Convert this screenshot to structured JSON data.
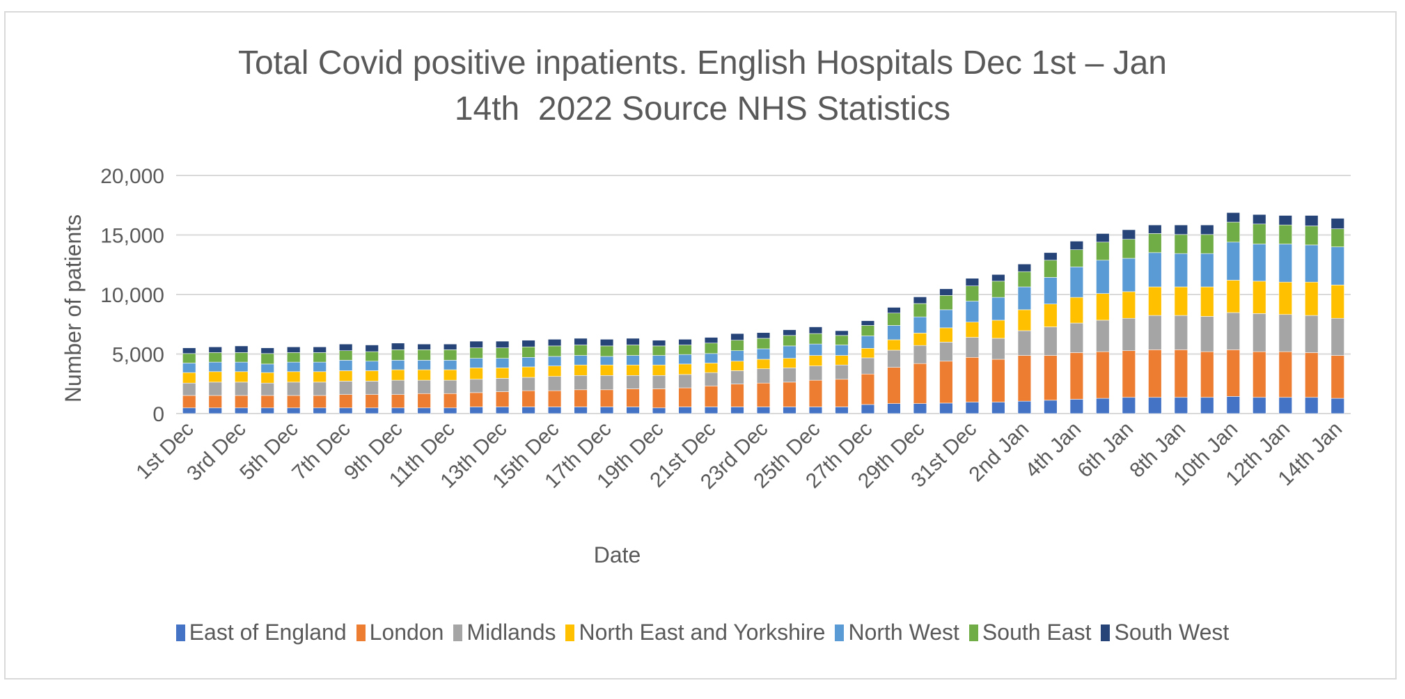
{
  "chart_data": {
    "type": "bar",
    "stacked": true,
    "title_lines": [
      "Total Covid positive inpatients. English Hospitals Dec 1st – Jan",
      "14th  2022 Source NHS Statistics"
    ],
    "xlabel": "Date",
    "ylabel": "Number of patients",
    "ylim": [
      0,
      20000
    ],
    "yticks": [
      0,
      5000,
      10000,
      15000,
      20000
    ],
    "ytick_labels": [
      "0",
      "5,000",
      "10,000",
      "15,000",
      "20,000"
    ],
    "grid": true,
    "legend_position": "bottom",
    "categories": [
      "1st Dec",
      "2nd Dec",
      "3rd Dec",
      "4th Dec",
      "5th Dec",
      "6th Dec",
      "7th Dec",
      "8th Dec",
      "9th Dec",
      "10th Dec",
      "11th Dec",
      "12th Dec",
      "13th Dec",
      "14th Dec",
      "15th Dec",
      "16th Dec",
      "17th Dec",
      "18th Dec",
      "19th Dec",
      "20th Dec",
      "21st Dec",
      "22nd Dec",
      "23rd Dec",
      "24th Dec",
      "25th Dec",
      "26th Dec",
      "27th Dec",
      "28th Dec",
      "29th Dec",
      "30th Dec",
      "31st Dec",
      "1st Jan",
      "2nd Jan",
      "3rd Jan",
      "4th Jan",
      "5th Jan",
      "6th Jan",
      "7th Jan",
      "8th Jan",
      "9th Jan",
      "10th Jan",
      "11th Jan",
      "12th Jan",
      "13th Jan",
      "14th Jan"
    ],
    "tick_label_every": 2,
    "series": [
      {
        "name": "East of England",
        "color": "#4472C4",
        "values": [
          480,
          480,
          480,
          480,
          480,
          480,
          480,
          480,
          480,
          480,
          480,
          560,
          560,
          560,
          560,
          560,
          560,
          560,
          480,
          560,
          560,
          560,
          560,
          560,
          560,
          560,
          760,
          840,
          840,
          880,
          960,
          960,
          1040,
          1120,
          1200,
          1280,
          1360,
          1360,
          1360,
          1360,
          1440,
          1360,
          1360,
          1360,
          1280
        ]
      },
      {
        "name": "London",
        "color": "#ED7D31",
        "values": [
          1040,
          1040,
          1040,
          1040,
          1040,
          1040,
          1120,
          1120,
          1120,
          1200,
          1200,
          1200,
          1280,
          1360,
          1360,
          1440,
          1440,
          1520,
          1600,
          1600,
          1760,
          1920,
          2000,
          2080,
          2240,
          2320,
          2560,
          3040,
          3360,
          3520,
          3760,
          3600,
          3840,
          3760,
          3920,
          3920,
          3920,
          4000,
          4000,
          3840,
          3920,
          3840,
          3840,
          3760,
          3600
        ]
      },
      {
        "name": "Midlands",
        "color": "#A5A5A5",
        "values": [
          1040,
          1120,
          1120,
          1040,
          1120,
          1120,
          1120,
          1120,
          1200,
          1120,
          1120,
          1120,
          1120,
          1120,
          1200,
          1200,
          1200,
          1120,
          1120,
          1120,
          1120,
          1120,
          1200,
          1200,
          1200,
          1200,
          1360,
          1440,
          1520,
          1600,
          1680,
          1760,
          2080,
          2400,
          2480,
          2640,
          2720,
          2880,
          2880,
          2960,
          3120,
          3200,
          3120,
          3120,
          3120
        ]
      },
      {
        "name": "North East and Yorkshire",
        "color": "#FFC000",
        "values": [
          880,
          880,
          880,
          880,
          880,
          880,
          880,
          880,
          880,
          880,
          880,
          960,
          880,
          880,
          880,
          880,
          880,
          880,
          880,
          880,
          800,
          800,
          800,
          800,
          880,
          800,
          800,
          880,
          1040,
          1200,
          1280,
          1520,
          1760,
          1920,
          2160,
          2240,
          2240,
          2400,
          2400,
          2480,
          2720,
          2720,
          2720,
          2800,
          2800
        ]
      },
      {
        "name": "North West",
        "color": "#5B9BD5",
        "values": [
          800,
          800,
          800,
          720,
          800,
          800,
          880,
          800,
          800,
          800,
          800,
          800,
          800,
          800,
          800,
          800,
          720,
          800,
          800,
          800,
          800,
          880,
          880,
          1040,
          960,
          880,
          1040,
          1200,
          1360,
          1520,
          1760,
          1920,
          1920,
          2240,
          2560,
          2800,
          2800,
          2880,
          2800,
          2800,
          3200,
          3120,
          3200,
          3120,
          3200
        ]
      },
      {
        "name": "South East",
        "color": "#70AD47",
        "values": [
          800,
          800,
          800,
          880,
          800,
          800,
          800,
          800,
          880,
          880,
          880,
          880,
          880,
          880,
          880,
          880,
          880,
          880,
          800,
          800,
          880,
          880,
          880,
          880,
          880,
          800,
          880,
          1040,
          1120,
          1200,
          1280,
          1360,
          1280,
          1440,
          1440,
          1520,
          1600,
          1600,
          1600,
          1600,
          1680,
          1680,
          1600,
          1600,
          1520
        ]
      },
      {
        "name": "South West",
        "color": "#264478",
        "values": [
          480,
          480,
          560,
          480,
          480,
          480,
          560,
          560,
          560,
          480,
          480,
          560,
          560,
          560,
          560,
          560,
          560,
          560,
          480,
          480,
          480,
          560,
          480,
          480,
          560,
          400,
          400,
          480,
          560,
          560,
          640,
          560,
          640,
          640,
          720,
          720,
          800,
          720,
          800,
          800,
          800,
          800,
          800,
          880,
          880
        ]
      }
    ]
  }
}
